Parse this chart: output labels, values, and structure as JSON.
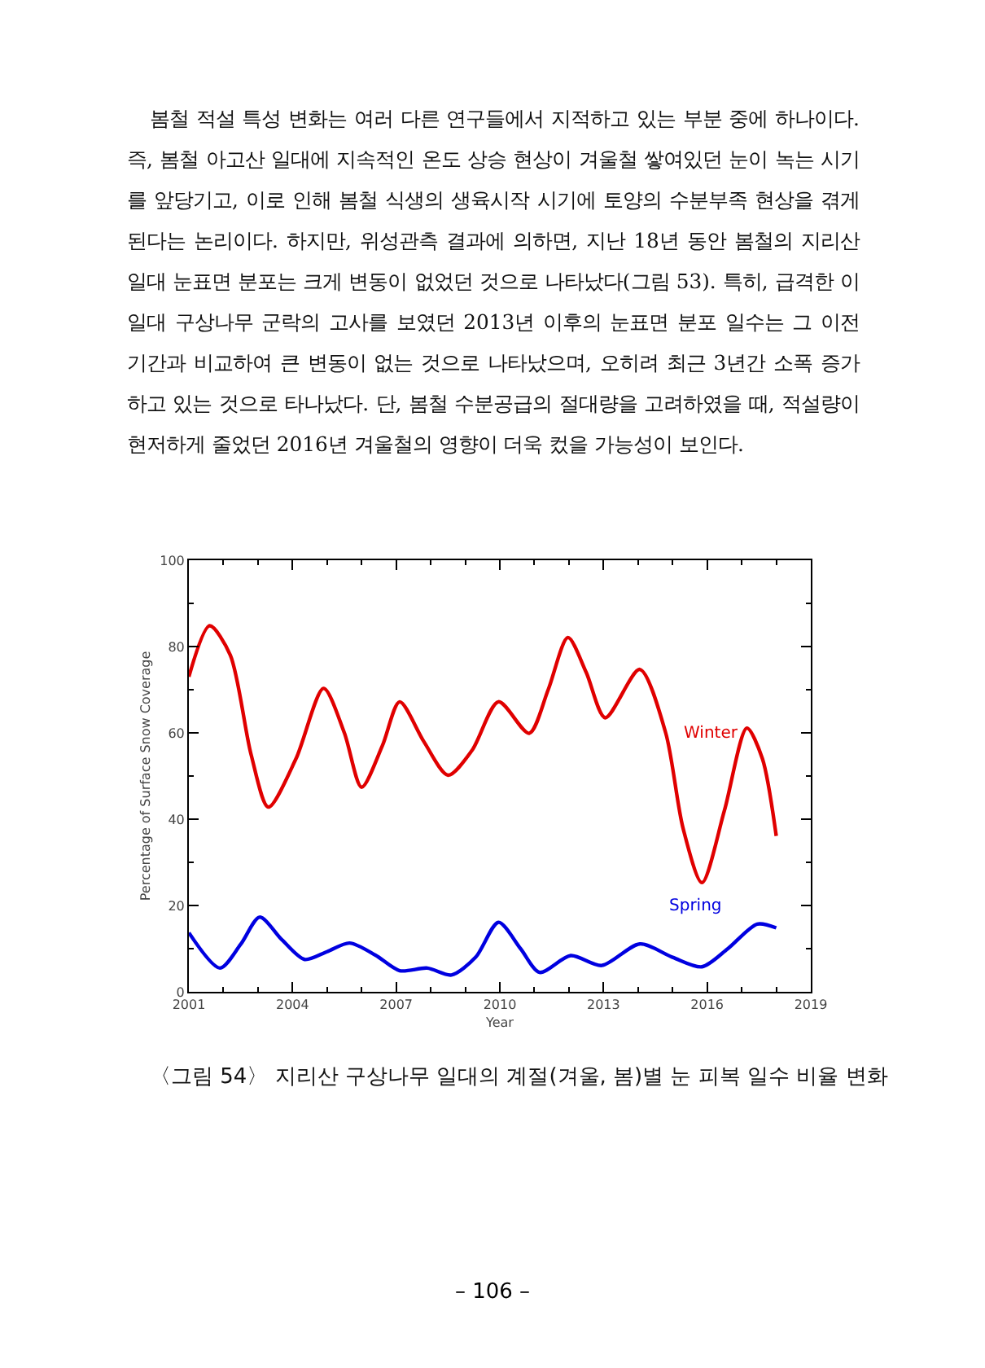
{
  "chart_data": {
    "type": "line",
    "title": "〈그림 54〉 지리산 구상나무 일대의 계절(겨울, 봄)별 눈 피복 일수 비율 변화",
    "annotations": [
      "봄철 적설 특성 변화는 여러 다른 연구들에서 지적하고 있는 부분 중에 하나이다. 즉, 봄철 아고산 일대에 지속적인 온도 상승 현상이 겨울철 쌓여있던 눈이 녹는 시기를 앞당기고, 이로 인해 봄철 식생의 생육시작 시기에 토양의 수분부족 현상을 겪게 된다는 논리이다. 하지만, 위성관측 결과에 의하면, 지난 18년 동안 봄철의 지리산 일대 눈표면 분포는 크게 변동이 없었던 것으로 나타났다(그림 53). 특히, 급격한 이 일대 구상나무 군락의 고사를 보였던 2013년 이후의 눈표면 분포 일수는 그 이전 기간과 비교하여 큰 변동이 없는 것으로 나타났으며, 오히려 최근 3년간 소폭 증가하고 있는 것으로 타나났다. 단, 봄철 수분공급의 절대량을 고려하였을 때, 적설량이 현저하게 줄었던 2016년 겨울철의 영향이 더욱 컸을 가능성이 보인다.",
      "– 106 –"
    ],
    "xlabel": "Year",
    "ylabel": "Percentage of Surface Snow Coverage",
    "xlim": [
      2001,
      2019
    ],
    "xticks": [
      2001,
      2004,
      2007,
      2010,
      2013,
      2016,
      2019
    ],
    "ylim": [
      0,
      100
    ],
    "yticks": [
      0,
      20,
      40,
      60,
      80,
      100
    ],
    "grid": false,
    "legend": false,
    "marker": "none",
    "line_style": "solid",
    "series": [
      {
        "name": "Winter",
        "color": "#e00000",
        "x": [
          2001,
          2001.6,
          2002.2,
          2002.8,
          2003.3,
          2004.1,
          2004.9,
          2005.5,
          2006.0,
          2006.6,
          2007.1,
          2007.8,
          2008.5,
          2009.2,
          2009.96,
          2010.85,
          2011.4,
          2011.97,
          2012.5,
          2013.05,
          2014.05,
          2014.8,
          2015.3,
          2015.85,
          2016.5,
          2017.15,
          2017.6,
          2018.0
        ],
        "values": [
          73,
          84.8,
          78,
          55,
          42.8,
          54,
          70.3,
          60,
          47.4,
          57,
          67.2,
          58,
          50.2,
          56,
          67.2,
          59.9,
          70,
          82.1,
          74,
          63.5,
          74.7,
          60,
          38,
          25.3,
          42,
          61.1,
          54,
          36.1
        ]
      },
      {
        "name": "Spring",
        "color": "#0000e0",
        "x": [
          2001,
          2001.9,
          2002.5,
          2003.05,
          2003.7,
          2004.35,
          2005.0,
          2005.65,
          2006.4,
          2007.1,
          2007.9,
          2008.6,
          2009.3,
          2009.96,
          2010.6,
          2011.15,
          2012.05,
          2012.95,
          2014.05,
          2015.0,
          2015.85,
          2016.6,
          2017.45,
          2018.0
        ],
        "values": [
          13.7,
          5.5,
          11,
          17.3,
          12,
          7.5,
          9.3,
          11.3,
          8.5,
          4.9,
          5.5,
          3.9,
          8,
          16.1,
          10,
          4.5,
          8.4,
          6.1,
          11.1,
          8,
          5.8,
          10,
          15.7,
          14.8
        ]
      }
    ]
  }
}
